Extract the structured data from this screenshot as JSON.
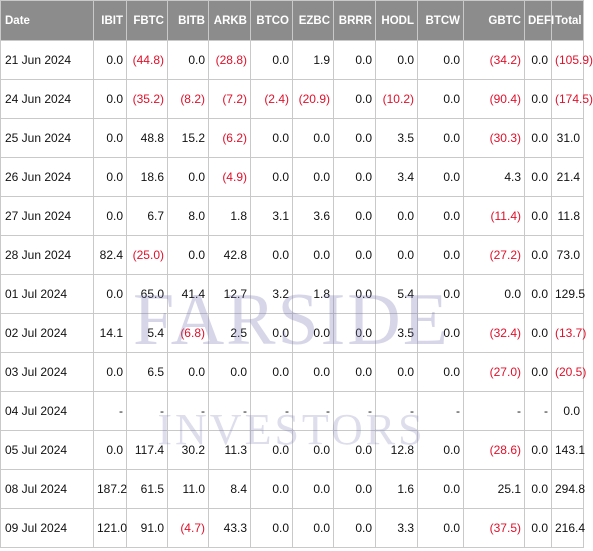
{
  "columns": [
    "Date",
    "IBIT",
    "FBTC",
    "BITB",
    "ARKB",
    "BTCO",
    "EZBC",
    "BRRR",
    "HODL",
    "BTCW",
    "GBTC",
    "DEFI",
    "Total"
  ],
  "rows": [
    {
      "date": "21 Jun 2024",
      "values": [
        "0.0",
        "(44.8)",
        "0.0",
        "(28.8)",
        "0.0",
        "1.9",
        "0.0",
        "0.0",
        "0.0",
        "(34.2)",
        "0.0",
        "(105.9)"
      ]
    },
    {
      "date": "24 Jun 2024",
      "values": [
        "0.0",
        "(35.2)",
        "(8.2)",
        "(7.2)",
        "(2.4)",
        "(20.9)",
        "0.0",
        "(10.2)",
        "0.0",
        "(90.4)",
        "0.0",
        "(174.5)"
      ]
    },
    {
      "date": "25 Jun 2024",
      "values": [
        "0.0",
        "48.8",
        "15.2",
        "(6.2)",
        "0.0",
        "0.0",
        "0.0",
        "3.5",
        "0.0",
        "(30.3)",
        "0.0",
        "31.0"
      ]
    },
    {
      "date": "26 Jun 2024",
      "values": [
        "0.0",
        "18.6",
        "0.0",
        "(4.9)",
        "0.0",
        "0.0",
        "0.0",
        "3.4",
        "0.0",
        "4.3",
        "0.0",
        "21.4"
      ]
    },
    {
      "date": "27 Jun 2024",
      "values": [
        "0.0",
        "6.7",
        "8.0",
        "1.8",
        "3.1",
        "3.6",
        "0.0",
        "0.0",
        "0.0",
        "(11.4)",
        "0.0",
        "11.8"
      ]
    },
    {
      "date": "28 Jun 2024",
      "values": [
        "82.4",
        "(25.0)",
        "0.0",
        "42.8",
        "0.0",
        "0.0",
        "0.0",
        "0.0",
        "0.0",
        "(27.2)",
        "0.0",
        "73.0"
      ]
    },
    {
      "date": "01 Jul 2024",
      "values": [
        "0.0",
        "65.0",
        "41.4",
        "12.7",
        "3.2",
        "1.8",
        "0.0",
        "5.4",
        "0.0",
        "0.0",
        "0.0",
        "129.5"
      ]
    },
    {
      "date": "02 Jul 2024",
      "values": [
        "14.1",
        "5.4",
        "(6.8)",
        "2.5",
        "0.0",
        "0.0",
        "0.0",
        "3.5",
        "0.0",
        "(32.4)",
        "0.0",
        "(13.7)"
      ]
    },
    {
      "date": "03 Jul 2024",
      "values": [
        "0.0",
        "6.5",
        "0.0",
        "0.0",
        "0.0",
        "0.0",
        "0.0",
        "0.0",
        "0.0",
        "(27.0)",
        "0.0",
        "(20.5)"
      ]
    },
    {
      "date": "04 Jul 2024",
      "values": [
        "-",
        "-",
        "-",
        "-",
        "-",
        "-",
        "-",
        "-",
        "-",
        "-",
        "-",
        "0.0"
      ]
    },
    {
      "date": "05 Jul 2024",
      "values": [
        "0.0",
        "117.4",
        "30.2",
        "11.3",
        "0.0",
        "0.0",
        "0.0",
        "12.8",
        "0.0",
        "(28.6)",
        "0.0",
        "143.1"
      ]
    },
    {
      "date": "08 Jul 2024",
      "values": [
        "187.2",
        "61.5",
        "11.0",
        "8.4",
        "0.0",
        "0.0",
        "0.0",
        "1.6",
        "0.0",
        "25.1",
        "0.0",
        "294.8"
      ]
    },
    {
      "date": "09 Jul 2024",
      "values": [
        "121.0",
        "91.0",
        "(4.7)",
        "43.3",
        "0.0",
        "0.0",
        "0.0",
        "3.3",
        "0.0",
        "(37.5)",
        "0.0",
        "216.4"
      ]
    }
  ],
  "watermark": {
    "line1": "FARSIDE",
    "line2": "INVESTORS"
  },
  "colors": {
    "header_bg": "#8c8c8c",
    "header_text": "#ffffff",
    "negative": "#e0102a",
    "border": "#c9c9c9"
  }
}
